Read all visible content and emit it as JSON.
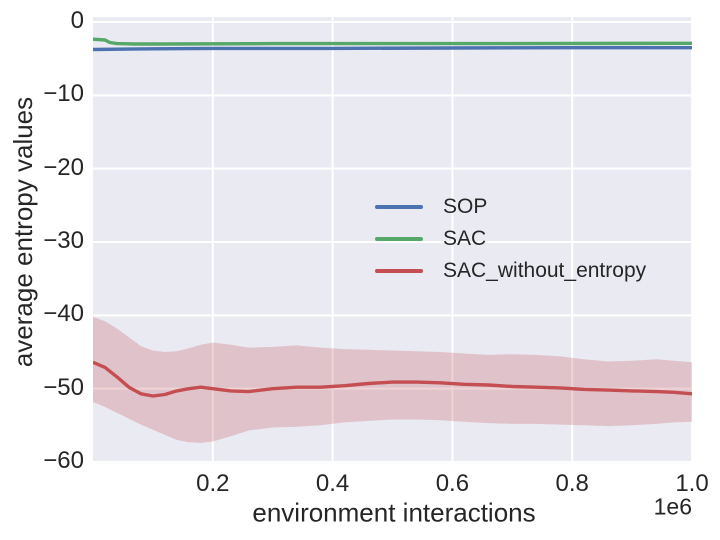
{
  "figure": {
    "background": "#ffffff",
    "axes_background": "#EAEAF2",
    "grid_color": "#ffffff",
    "text_color": "#262626"
  },
  "chart_data": {
    "type": "line",
    "title": "",
    "xlabel": "environment interactions",
    "ylabel": "average entropy values",
    "x_offset_label": "1e6",
    "x_unit_multiplier": 1000000,
    "xlim": [
      0.0,
      1.0
    ],
    "ylim": [
      -60.3,
      0.7
    ],
    "grid": true,
    "x_ticks": [
      0.2,
      0.4,
      0.6,
      0.8,
      1.0
    ],
    "x_tick_labels": [
      "0.2",
      "0.4",
      "0.6",
      "0.8",
      "1.0"
    ],
    "y_ticks": [
      0,
      -10,
      -20,
      -30,
      -40,
      -50,
      -60
    ],
    "y_tick_labels": [
      "0",
      "−10",
      "−20",
      "−30",
      "−40",
      "−50",
      "−60"
    ],
    "legend": {
      "frame": false,
      "position": "center"
    },
    "series": [
      {
        "name": "SOP",
        "color": "#4C72B0",
        "x": [
          0.0,
          0.1,
          0.2,
          0.4,
          0.6,
          0.8,
          1.0
        ],
        "y": [
          -3.75,
          -3.65,
          -3.6,
          -3.6,
          -3.55,
          -3.5,
          -3.5
        ]
      },
      {
        "name": "SAC",
        "color": "#55A868",
        "x": [
          0.0,
          0.02,
          0.028,
          0.04,
          0.07,
          0.12,
          0.3,
          0.6,
          1.0
        ],
        "y": [
          -2.35,
          -2.45,
          -2.8,
          -2.95,
          -3.0,
          -3.0,
          -2.95,
          -2.95,
          -2.9
        ]
      },
      {
        "name": "SAC_without_entropy",
        "color": "#C44E52",
        "x": [
          0.0,
          0.02,
          0.04,
          0.06,
          0.08,
          0.1,
          0.12,
          0.14,
          0.16,
          0.18,
          0.2,
          0.23,
          0.26,
          0.3,
          0.34,
          0.38,
          0.42,
          0.46,
          0.5,
          0.54,
          0.58,
          0.62,
          0.66,
          0.7,
          0.74,
          0.78,
          0.82,
          0.86,
          0.9,
          0.94,
          0.97,
          1.0
        ],
        "y": [
          -46.4,
          -47.1,
          -48.4,
          -49.8,
          -50.7,
          -51.0,
          -50.8,
          -50.3,
          -50.0,
          -49.8,
          -50.0,
          -50.3,
          -50.4,
          -50.0,
          -49.8,
          -49.8,
          -49.6,
          -49.3,
          -49.1,
          -49.1,
          -49.2,
          -49.4,
          -49.5,
          -49.7,
          -49.8,
          -49.9,
          -50.1,
          -50.2,
          -50.3,
          -50.4,
          -50.5,
          -50.7
        ],
        "band": {
          "alpha": 0.25,
          "upper": [
            -40.2,
            -40.8,
            -41.8,
            -43.0,
            -44.2,
            -44.8,
            -45.0,
            -44.9,
            -44.5,
            -44.0,
            -43.7,
            -44.0,
            -44.4,
            -44.3,
            -44.1,
            -44.4,
            -44.6,
            -44.7,
            -44.8,
            -44.9,
            -45.0,
            -45.2,
            -45.4,
            -45.3,
            -45.4,
            -45.6,
            -46.0,
            -46.3,
            -46.2,
            -46.0,
            -46.2,
            -46.4
          ],
          "lower": [
            -51.8,
            -52.5,
            -53.3,
            -54.1,
            -54.9,
            -55.6,
            -56.3,
            -57.0,
            -57.3,
            -57.4,
            -57.2,
            -56.5,
            -55.7,
            -55.3,
            -55.2,
            -55.0,
            -54.6,
            -54.4,
            -54.2,
            -54.2,
            -54.3,
            -54.5,
            -54.7,
            -54.8,
            -54.8,
            -54.9,
            -55.0,
            -55.1,
            -55.0,
            -54.8,
            -54.6,
            -54.5
          ]
        }
      }
    ]
  }
}
